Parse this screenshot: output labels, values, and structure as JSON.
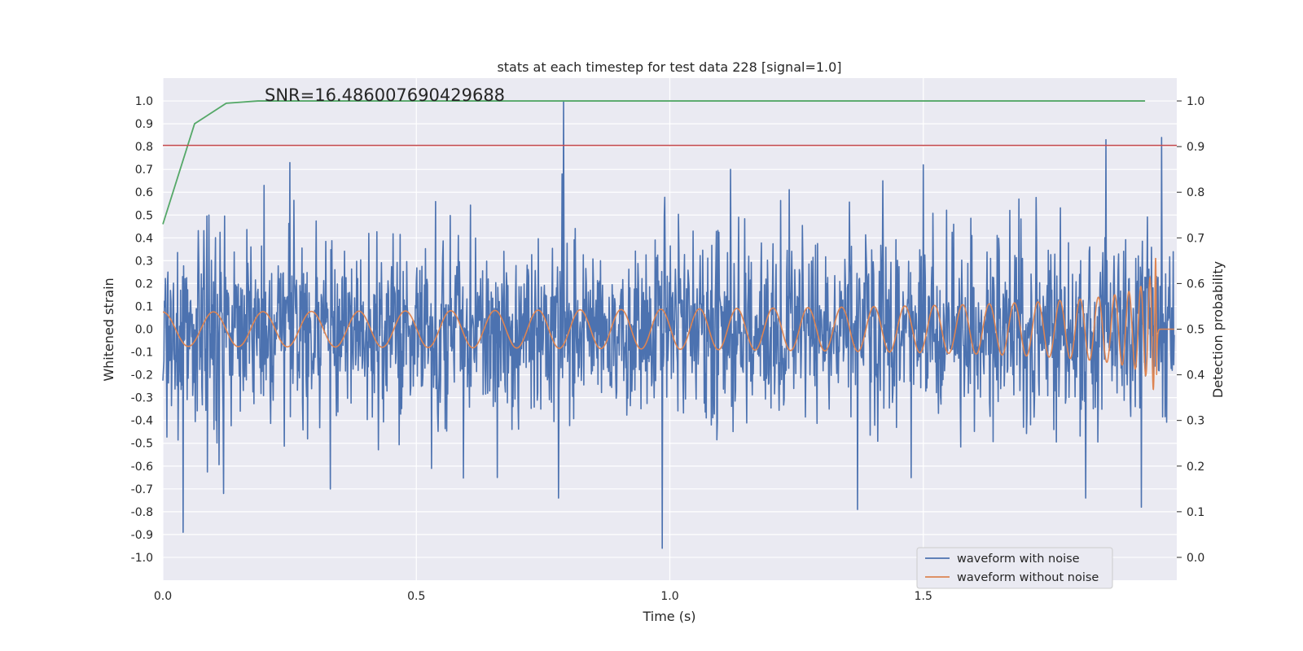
{
  "chart_data": {
    "type": "line",
    "title": "stats at each timestep for test data 228 [signal=1.0]",
    "xlabel": "Time (s)",
    "ylabel": "Whitened strain",
    "ylabel_right": "Detection probability",
    "annotation": "SNR=16.486007690429688",
    "xlim": [
      0,
      2.0
    ],
    "ylim": [
      -1.1,
      1.1
    ],
    "ylim_right": [
      -0.05,
      1.05
    ],
    "x_ticks": [
      "0.0",
      "0.5",
      "1.0",
      "1.5"
    ],
    "y_ticks": [
      "-1.0",
      "-0.9",
      "-0.8",
      "-0.7",
      "-0.6",
      "-0.5",
      "-0.4",
      "-0.3",
      "-0.2",
      "-0.1",
      "0.0",
      "0.1",
      "0.2",
      "0.3",
      "0.4",
      "0.5",
      "0.6",
      "0.7",
      "0.8",
      "0.9",
      "1.0"
    ],
    "y_ticks_right": [
      "0.0",
      "0.1",
      "0.2",
      "0.3",
      "0.4",
      "0.5",
      "0.6",
      "0.7",
      "0.8",
      "0.9",
      "1.0"
    ],
    "grid": true,
    "legend_position": "bottom-right",
    "colors": {
      "noise": "#4c72b0",
      "clean": "#dd8452",
      "probability": "#55a868",
      "threshold": "#c44e52",
      "background": "#eaeaf2",
      "grid": "#ffffff"
    },
    "series": [
      {
        "name": "waveform with noise",
        "description": "noisy whitened strain, roughly uniform amplitude ±0.5 with spikes",
        "amplitude": 0.45,
        "spikes": [
          [
            0.04,
            -0.89
          ],
          [
            0.79,
            1.0
          ],
          [
            0.985,
            -0.96
          ],
          [
            0.25,
            0.73
          ],
          [
            0.53,
            -0.61
          ],
          [
            1.37,
            -0.79
          ],
          [
            1.86,
            0.83
          ],
          [
            1.97,
            0.84
          ],
          [
            1.93,
            -0.78
          ],
          [
            0.33,
            -0.7
          ],
          [
            0.12,
            -0.72
          ],
          [
            0.66,
            -0.65
          ],
          [
            1.82,
            -0.74
          ],
          [
            1.5,
            0.72
          ],
          [
            1.12,
            0.7
          ],
          [
            0.78,
            -0.74
          ],
          [
            1.42,
            0.65
          ],
          [
            0.2,
            0.63
          ]
        ]
      },
      {
        "name": "waveform without noise",
        "description": "chirp: frequency and amplitude increase with time, ends near 1.96 s",
        "chirp_amplitude_start": 0.075,
        "chirp_amplitude_end": 0.41,
        "chirp_end": 1.96
      },
      {
        "name": "detection probability",
        "axis": "right",
        "x": [
          0.0,
          0.0625,
          0.125,
          0.1875,
          0.25,
          0.5,
          1.0,
          1.5,
          1.9375
        ],
        "values": [
          0.73,
          0.95,
          0.995,
          1.0,
          1.0,
          1.0,
          1.0,
          1.0,
          1.0
        ]
      },
      {
        "name": "threshold",
        "axis": "left",
        "type": "hline",
        "value": 0.805
      }
    ]
  }
}
